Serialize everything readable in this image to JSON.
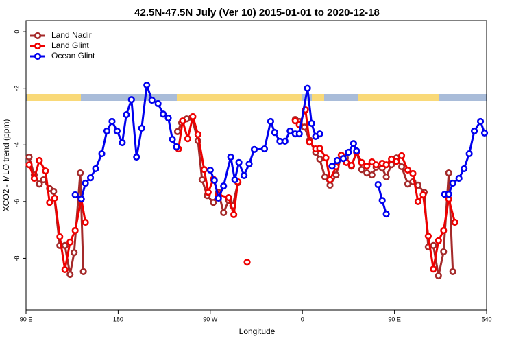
{
  "chart_data": {
    "type": "line",
    "title": "42.5N-47.5N July (Ver 10)   2015-01-01 to 2020-12-18",
    "x_label": "Longitude",
    "y_label": "XCO2 - MLO trend (ppm)",
    "xlim": [
      90,
      540
    ],
    "ylim": [
      -9.83,
      0.39
    ],
    "xticks": [
      {
        "value": 90,
        "label": "90 E"
      },
      180,
      {
        "value": 270,
        "label": "90 W"
      },
      {
        "value": 360,
        "label": "0"
      },
      {
        "value": 450,
        "label": "90 E"
      },
      540
    ],
    "yticks": [
      0,
      -2,
      -4,
      -6,
      -8
    ],
    "legend": "top-left",
    "series": [
      {
        "name": "Land Nadir",
        "color": "#a52a2a",
        "x": [
          93,
          98,
          103,
          107,
          113,
          117,
          123,
          128,
          133,
          137,
          143,
          146,
          null,
          238,
          242,
          247,
          252,
          258,
          262,
          267,
          273,
          278,
          283,
          288,
          292,
          297,
          null,
          353,
          357,
          362,
          367,
          373,
          377,
          382,
          387,
          393,
          398,
          402,
          408,
          413,
          418,
          423,
          428,
          432,
          438,
          442,
          447,
          452,
          457,
          463,
          468,
          473,
          479,
          483,
          488,
          493,
          498,
          503,
          507
        ],
        "values": [
          -4.43,
          -5.06,
          -5.38,
          -5.23,
          -5.54,
          -5.64,
          -7.55,
          -7.55,
          -8.57,
          -7.8,
          -4.99,
          -8.47,
          null,
          -3.53,
          -3.22,
          -3.08,
          -3.03,
          -3.85,
          -5.23,
          -5.79,
          -6.03,
          -5.67,
          -6.39,
          -5.96,
          -6.15,
          -5.33,
          null,
          -3.1,
          -3.17,
          -3.37,
          -3.83,
          -4.26,
          -4.5,
          -5.13,
          -5.42,
          -5.06,
          -4.36,
          -4.46,
          -4.75,
          -4.26,
          -4.87,
          -4.99,
          -5.06,
          -4.79,
          -4.82,
          -5.13,
          -4.7,
          -4.46,
          -4.77,
          -5.38,
          -5.3,
          -5.42,
          -5.67,
          -7.6,
          -7.55,
          -8.62,
          -7.77,
          -4.99,
          -8.47
        ]
      },
      {
        "name": "Land Glint",
        "color": "#ee0000",
        "x": [
          93,
          98,
          103,
          109,
          113,
          118,
          123,
          128,
          133,
          138,
          144,
          148,
          null,
          239,
          243,
          248,
          253,
          258,
          264,
          268,
          273,
          278,
          288,
          293,
          297,
          null,
          306,
          null,
          353,
          357,
          363,
          367,
          373,
          377,
          383,
          387,
          393,
          398,
          403,
          408,
          413,
          418,
          423,
          428,
          432,
          438,
          442,
          447,
          452,
          457,
          463,
          468,
          473,
          478,
          483,
          488,
          493,
          498,
          503,
          509
        ],
        "values": [
          -4.7,
          -5.18,
          -4.55,
          -4.92,
          -6.03,
          -5.88,
          -7.24,
          -8.4,
          -7.43,
          -7.02,
          -5.91,
          -6.73,
          null,
          -4.14,
          -3.15,
          -3.78,
          -3.0,
          -3.63,
          -4.87,
          -5.67,
          -5.21,
          -5.76,
          -5.86,
          -6.46,
          -5.3,
          null,
          -8.14,
          null,
          -3.15,
          -3.29,
          -2.76,
          -3.9,
          -4.14,
          -4.12,
          -4.46,
          -5.23,
          -4.77,
          -4.36,
          -4.62,
          -4.72,
          -4.26,
          -4.62,
          -4.75,
          -4.6,
          -4.7,
          -4.65,
          -4.7,
          -4.5,
          -4.58,
          -4.38,
          -4.89,
          -5.01,
          -6.0,
          -5.76,
          -7.22,
          -8.38,
          -7.38,
          -7.02,
          -5.91,
          -6.73
        ]
      },
      {
        "name": "Ocean Glint",
        "color": "#0000ee",
        "x": [
          138,
          144,
          148,
          153,
          158,
          164,
          169,
          174,
          179,
          184,
          188,
          193,
          198,
          203,
          208,
          213,
          219,
          224,
          229,
          233,
          237,
          null,
          270,
          274,
          278,
          283,
          290,
          294,
          298,
          303,
          308,
          313,
          323,
          329,
          333,
          338,
          343,
          348,
          353,
          357,
          365,
          369,
          373,
          377,
          null,
          389,
          394,
          400,
          405,
          410,
          413,
          null,
          434,
          438,
          442,
          null,
          499,
          503,
          507,
          513,
          518,
          523,
          528,
          534,
          538
        ],
        "values": [
          -5.76,
          -5.91,
          -5.35,
          -5.16,
          -4.84,
          -4.31,
          -3.51,
          -3.17,
          -3.51,
          -3.92,
          -2.93,
          -2.4,
          -4.43,
          -3.41,
          -1.89,
          -2.42,
          -2.54,
          -2.91,
          -3.05,
          -3.8,
          -4.07,
          null,
          -4.89,
          -5.25,
          -5.88,
          -5.45,
          -4.43,
          -5.23,
          -4.62,
          -5.08,
          -4.67,
          -4.16,
          -4.14,
          -3.17,
          -3.56,
          -3.87,
          -3.87,
          -3.51,
          -3.61,
          -3.61,
          -2.0,
          -3.24,
          -3.7,
          -3.61,
          null,
          -4.75,
          -4.55,
          -4.48,
          -4.26,
          -3.95,
          -4.21,
          null,
          -5.4,
          -5.96,
          -6.44,
          null,
          -5.74,
          -5.74,
          -5.35,
          -5.18,
          -4.84,
          -4.31,
          -3.51,
          -3.17,
          -3.58
        ]
      }
    ]
  }
}
